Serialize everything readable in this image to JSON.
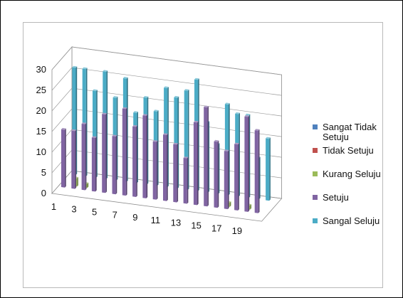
{
  "chart_data": {
    "type": "bar",
    "subtype": "3d-clustered-column",
    "categories": [
      "1",
      "2",
      "3",
      "4",
      "5",
      "6",
      "7",
      "8",
      "9",
      "10",
      "11",
      "12",
      "13",
      "14",
      "15",
      "16",
      "17",
      "18",
      "19",
      "20"
    ],
    "x_tick_labels": [
      "1",
      "3",
      "5",
      "7",
      "9",
      "11",
      "13",
      "15",
      "17",
      "19"
    ],
    "y_ticks": [
      "0",
      "5",
      "10",
      "15",
      "20",
      "25",
      "30"
    ],
    "ylim": [
      0,
      30
    ],
    "grid": true,
    "legend_position": "right",
    "series": [
      {
        "name": "Sangat Tidak Setuju",
        "color": "#4f81bd",
        "values": [
          0,
          0,
          0,
          0,
          0,
          0,
          0,
          0,
          0,
          0,
          0,
          0,
          0,
          0,
          0,
          0,
          0,
          0,
          0,
          0
        ]
      },
      {
        "name": "Tidak Setuju",
        "color": "#c0504d",
        "values": [
          0,
          0,
          0,
          0,
          0,
          0,
          0,
          0,
          0,
          0,
          0,
          0,
          0,
          0,
          0,
          0,
          0,
          0,
          0,
          0
        ]
      },
      {
        "name": "Kurang Setuju",
        "color": "#9bbb59",
        "values": [
          0,
          2,
          1,
          0,
          0,
          0,
          0,
          0,
          0,
          0,
          0,
          0,
          0,
          0,
          0,
          0,
          1,
          0,
          1,
          0
        ]
      },
      {
        "name": "Setuju",
        "color": "#8064a2",
        "values": [
          14,
          14,
          16,
          13,
          19,
          14,
          21,
          17,
          20,
          14,
          16,
          14,
          11,
          20,
          24,
          16,
          14,
          16,
          23,
          20
        ]
      },
      {
        "name": "Sangat Setuju",
        "color": "#4bacc6",
        "values": [
          26,
          26,
          21,
          26,
          20,
          25,
          17,
          21,
          18,
          24,
          22,
          24,
          27,
          17,
          12,
          22,
          20,
          20,
          10,
          15
        ]
      }
    ]
  },
  "legend_labels": [
    "Sangat Tidak Setuju",
    "Tidak Setuju",
    "Kurang Seluju",
    "Setuju",
    "Sangal Seluju"
  ]
}
